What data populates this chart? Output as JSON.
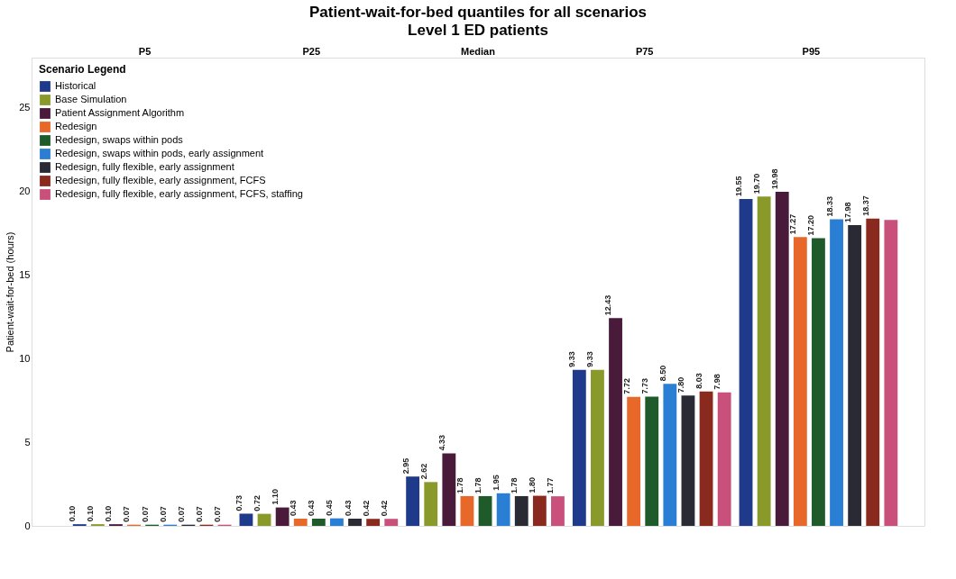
{
  "chart_data": {
    "type": "bar",
    "title": "Patient-wait-for-bed quantiles for all scenarios",
    "subtitle": "Level 1 ED patients",
    "ylabel": "Patient-wait-for-bed (hours)",
    "legend_title": "Scenario Legend",
    "legend": "top left",
    "grid": false,
    "categories": [
      "P5",
      "P25",
      "Median",
      "P75",
      "P95"
    ],
    "ylim": [
      0,
      28
    ],
    "yticks": [
      0,
      5,
      10,
      15,
      20,
      25
    ],
    "series": [
      {
        "name": "Historical",
        "color": "#1f3a8a",
        "values": [
          0.1,
          0.73,
          2.95,
          9.33,
          19.55
        ],
        "value_labels": [
          "0.10",
          "0.73",
          "2.95",
          "9.33",
          "19.55"
        ]
      },
      {
        "name": "Base Simulation",
        "color": "#8a9a2a",
        "values": [
          0.1,
          0.72,
          2.62,
          9.33,
          19.7
        ],
        "value_labels": [
          "0.10",
          "0.72",
          "2.62",
          "9.33",
          "19.70"
        ]
      },
      {
        "name": "Patient Assignment Algorithm",
        "color": "#4a1a3a",
        "values": [
          0.1,
          1.1,
          4.33,
          12.43,
          19.98
        ],
        "value_labels": [
          "0.10",
          "1.10",
          "4.33",
          "12.43",
          "19.98"
        ]
      },
      {
        "name": "Redesign",
        "color": "#e8682a",
        "values": [
          0.07,
          0.43,
          1.78,
          7.72,
          17.27
        ],
        "value_labels": [
          "0.07",
          "0.43",
          "1.78",
          "7.72",
          "17.27"
        ]
      },
      {
        "name": "Redesign, swaps within pods",
        "color": "#1e5a2a",
        "values": [
          0.07,
          0.43,
          1.78,
          7.73,
          17.2
        ],
        "value_labels": [
          "0.07",
          "0.43",
          "1.78",
          "7.73",
          "17.20"
        ]
      },
      {
        "name": "Redesign, swaps within pods, early assignment",
        "color": "#2a7fd4",
        "values": [
          0.07,
          0.45,
          1.95,
          8.5,
          18.33
        ],
        "value_labels": [
          "0.07",
          "0.45",
          "1.95",
          "8.50",
          "18.33"
        ]
      },
      {
        "name": "Redesign, fully flexible, early assignment",
        "color": "#2a2a35",
        "values": [
          0.07,
          0.43,
          1.78,
          7.8,
          17.98
        ],
        "value_labels": [
          "0.07",
          "0.43",
          "1.78",
          "7.80",
          "17.98"
        ]
      },
      {
        "name": "Redesign, fully flexible, early assignment, FCFS",
        "color": "#8a2a1e",
        "values": [
          0.07,
          0.42,
          1.8,
          8.03,
          18.37
        ],
        "value_labels": [
          "0.07",
          "0.42",
          "1.80",
          "8.03",
          "18.37"
        ]
      },
      {
        "name": "Redesign, fully flexible, early assignment, FCFS, staffing",
        "color": "#c8507a",
        "values": [
          0.07,
          0.42,
          1.77,
          7.98,
          18.3
        ],
        "value_labels": [
          "0.07",
          "0.42",
          "1.77",
          "7.98",
          null
        ]
      }
    ]
  }
}
